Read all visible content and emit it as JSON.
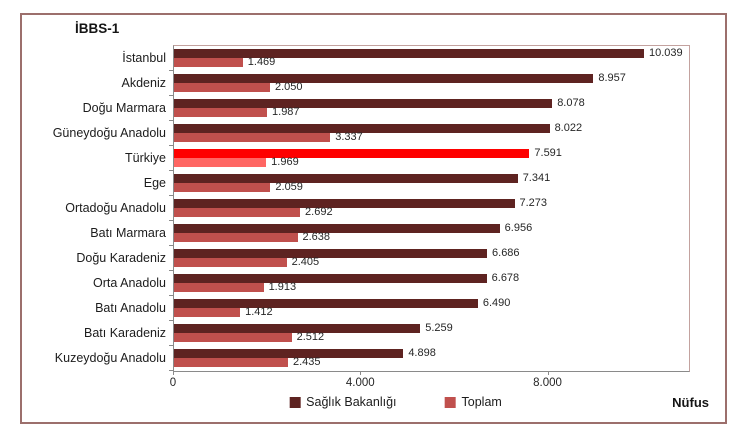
{
  "frame": {
    "title": "İBBS-1"
  },
  "chart_data": {
    "type": "bar",
    "orientation": "horizontal",
    "title": "İBBS-1",
    "xlabel": "Nüfus",
    "categories": [
      "İstanbul",
      "Akdeniz",
      "Doğu Marmara",
      "Güneydoğu Anadolu",
      "Türkiye",
      "Ege",
      "Ortadoğu Anadolu",
      "Batı Marmara",
      "Doğu Karadeniz",
      "Orta Anadolu",
      "Batı Anadolu",
      "Batı Karadeniz",
      "Kuzeydoğu Anadolu"
    ],
    "series": [
      {
        "name": "Sağlık Bakanlığı",
        "color": "#5e2321",
        "highlight_color": "#fe0000",
        "values": [
          10039,
          8957,
          8078,
          8022,
          7591,
          7341,
          7273,
          6956,
          6686,
          6678,
          6490,
          5259,
          4898
        ],
        "labels": [
          "10.039",
          "8.957",
          "8.078",
          "8.022",
          "7.591",
          "7.341",
          "7.273",
          "6.956",
          "6.686",
          "6.678",
          "6.490",
          "5.259",
          "4.898"
        ]
      },
      {
        "name": "Toplam",
        "color": "#c0504d",
        "highlight_color": "#ff6663",
        "values": [
          1469,
          2050,
          1987,
          3337,
          1969,
          2059,
          2692,
          2638,
          2405,
          1913,
          1412,
          2512,
          2435
        ],
        "labels": [
          "1.469",
          "2.050",
          "1.987",
          "3.337",
          "1.969",
          "2.059",
          "2.692",
          "2.638",
          "2.405",
          "1.913",
          "1.412",
          "2.512",
          "2.435"
        ]
      }
    ],
    "highlight_category": "Türkiye",
    "x_ticks": [
      "0",
      "4.000",
      "8.000"
    ],
    "x_tick_values": [
      0,
      4000,
      8000
    ],
    "xlim": [
      0,
      11000
    ],
    "grid": false,
    "legend_position": "bottom"
  }
}
